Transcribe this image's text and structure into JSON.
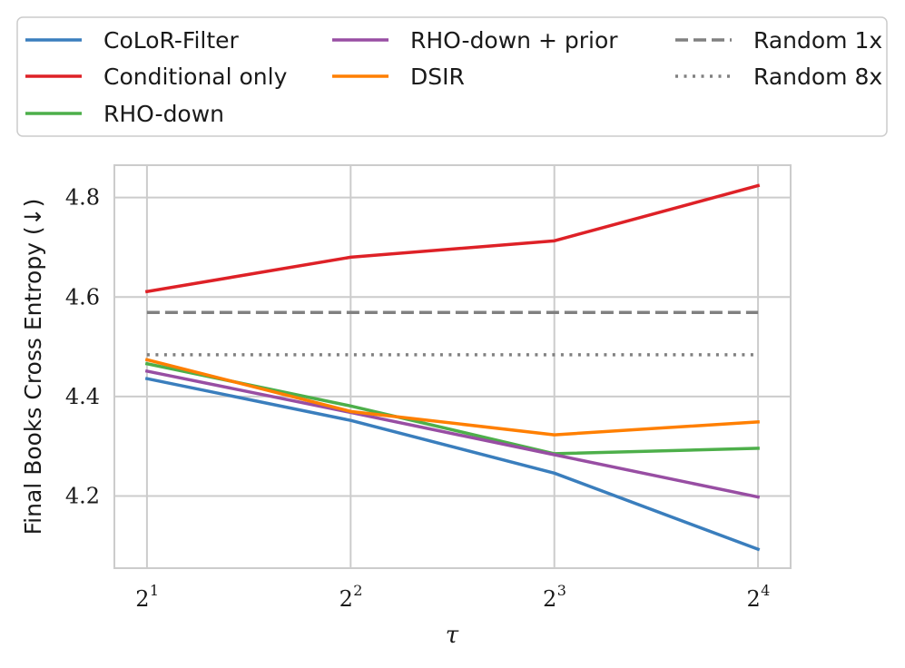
{
  "chart_data": {
    "type": "line",
    "title": "",
    "xlabel": "τ",
    "ylabel": "Final Books Cross Entropy (↓)",
    "x": [
      1,
      2,
      3,
      4
    ],
    "x_tick_labels": [
      {
        "base": "2",
        "exp": "1"
      },
      {
        "base": "2",
        "exp": "2"
      },
      {
        "base": "2",
        "exp": "3"
      },
      {
        "base": "2",
        "exp": "4"
      }
    ],
    "xlim": [
      0.84,
      4.16
    ],
    "ylim": [
      4.055,
      4.865
    ],
    "y_ticks": [
      4.2,
      4.4,
      4.6,
      4.8
    ],
    "y_tick_labels": [
      "4.2",
      "4.4",
      "4.6",
      "4.8"
    ],
    "grid": true,
    "legend_placement": "above",
    "series": [
      {
        "name": "CoLoR-Filter",
        "color": "#3a7ebd",
        "style": "solid",
        "values": [
          4.436,
          4.352,
          4.246,
          4.093
        ]
      },
      {
        "name": "Conditional only",
        "color": "#de2127",
        "style": "solid",
        "values": [
          4.611,
          4.68,
          4.713,
          4.824
        ]
      },
      {
        "name": "RHO-down",
        "color": "#4daf4a",
        "style": "solid",
        "values": [
          4.466,
          4.381,
          4.285,
          4.296
        ]
      },
      {
        "name": "RHO-down + prior",
        "color": "#984ea3",
        "style": "solid",
        "values": [
          4.451,
          4.368,
          4.283,
          4.198
        ]
      },
      {
        "name": "DSIR",
        "color": "#ff7f00",
        "style": "solid",
        "values": [
          4.474,
          4.37,
          4.323,
          4.349
        ]
      },
      {
        "name": "Random 1x",
        "color": "#808080",
        "style": "dashed",
        "values": [
          4.569,
          4.569,
          4.569,
          4.569
        ]
      },
      {
        "name": "Random 8x",
        "color": "#808080",
        "style": "dotted",
        "values": [
          4.484,
          4.484,
          4.484,
          4.484
        ]
      }
    ]
  }
}
